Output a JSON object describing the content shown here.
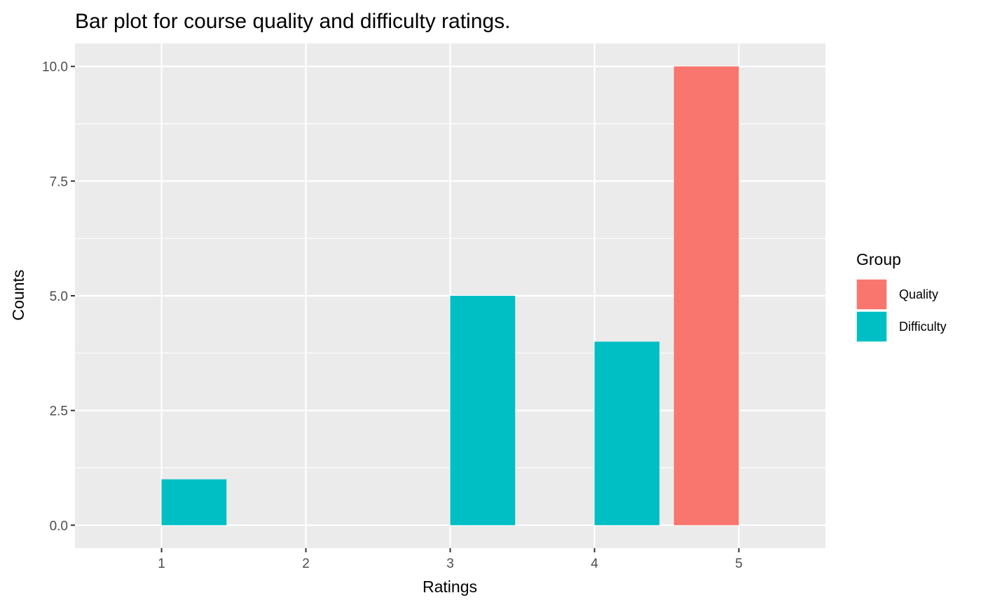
{
  "chart_data": {
    "type": "bar",
    "title": "Bar plot for course quality and difficulty ratings.",
    "xlabel": "Ratings",
    "ylabel": "Counts",
    "x_ticks": [
      "1",
      "2",
      "3",
      "4",
      "5"
    ],
    "y_ticks": [
      "0.0",
      "2.5",
      "5.0",
      "7.5",
      "10.0"
    ],
    "xlim": [
      0.4,
      5.6
    ],
    "ylim": [
      -0.5,
      10.5
    ],
    "grid": true,
    "legend": {
      "title": "Group",
      "placement": "right"
    },
    "series": [
      {
        "name": "Quality",
        "color": "#F8766D",
        "x": [
          4.775
        ],
        "values": [
          10
        ]
      },
      {
        "name": "Difficulty",
        "color": "#00BFC4",
        "x": [
          1.225,
          3.225,
          4.225
        ],
        "values": [
          1,
          5,
          4
        ]
      }
    ],
    "bar_width": 0.45,
    "panel_color": "#EBEBEB",
    "grid_color": "#FFFFFF"
  }
}
